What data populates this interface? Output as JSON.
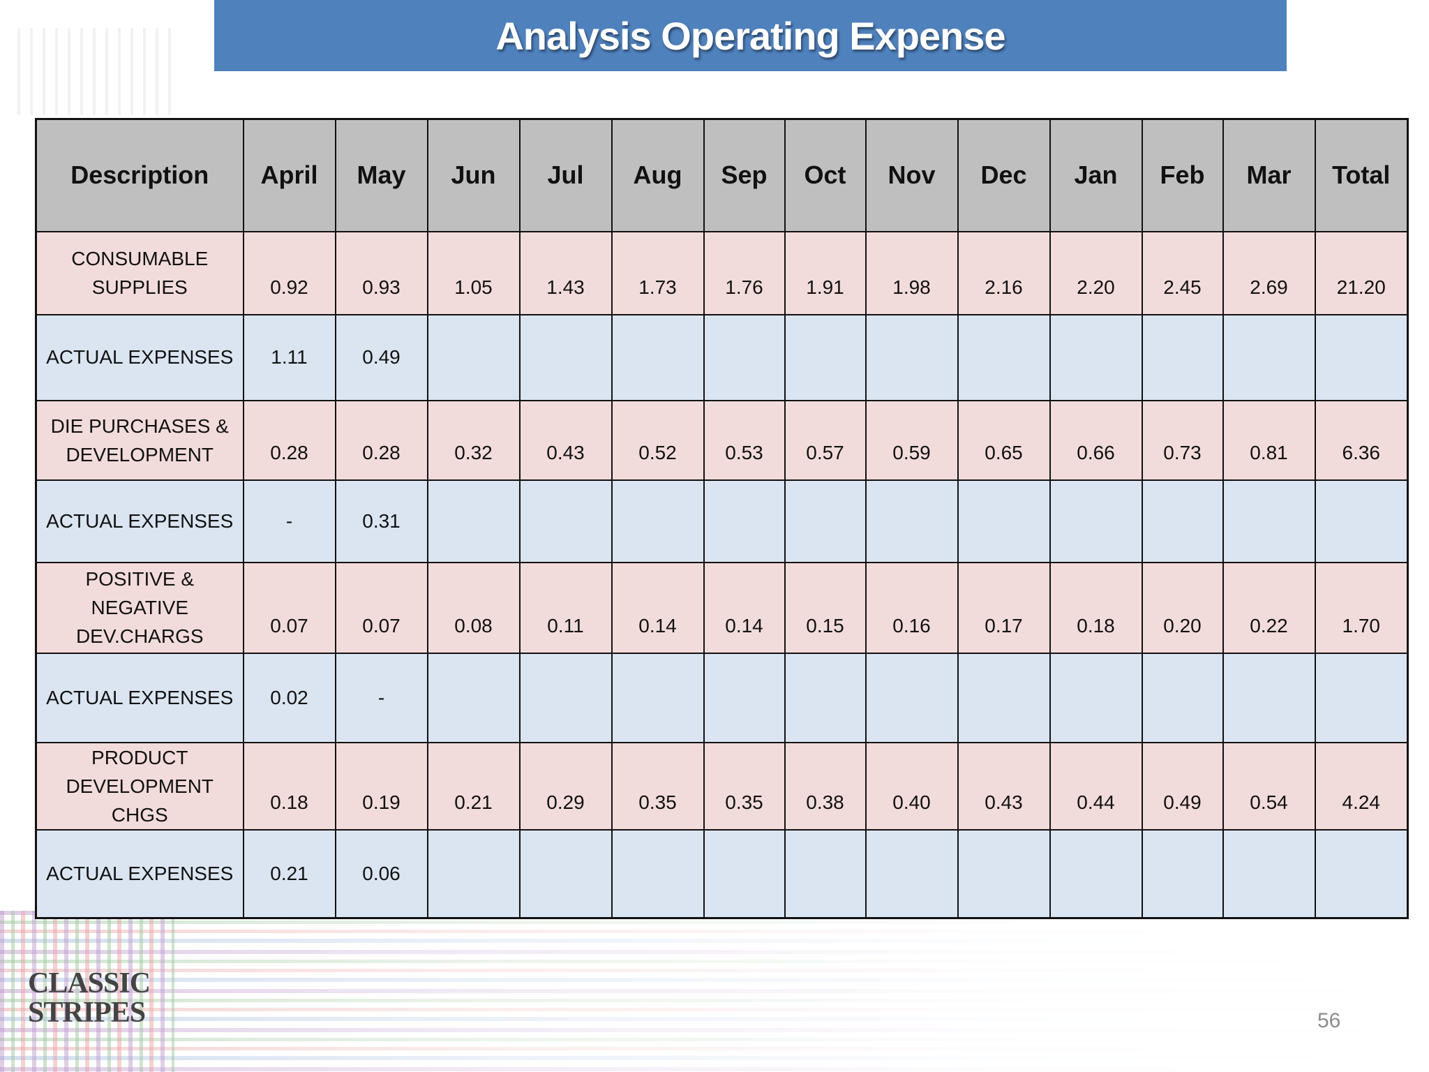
{
  "title": "Analysis Operating Expense",
  "header": [
    "Description",
    "April",
    "May",
    "Jun",
    "Jul",
    "Aug",
    "Sep",
    "Oct",
    "Nov",
    "Dec",
    "Jan",
    "Feb",
    "Mar",
    "Total"
  ],
  "rows": [
    {
      "type": "plan",
      "cells": [
        "CONSUMABLE\nSUPPLIES",
        "0.92",
        "0.93",
        "1.05",
        "1.43",
        "1.73",
        "1.76",
        "1.91",
        "1.98",
        "2.16",
        "2.20",
        "2.45",
        "2.69",
        "21.20"
      ]
    },
    {
      "type": "actual",
      "cells": [
        "ACTUAL EXPENSES",
        "1.11",
        "0.49",
        "",
        "",
        "",
        "",
        "",
        "",
        "",
        "",
        "",
        "",
        ""
      ]
    },
    {
      "type": "plan",
      "cells": [
        "DIE PURCHASES &\nDEVELOPMENT",
        "0.28",
        "0.28",
        "0.32",
        "0.43",
        "0.52",
        "0.53",
        "0.57",
        "0.59",
        "0.65",
        "0.66",
        "0.73",
        "0.81",
        "6.36"
      ]
    },
    {
      "type": "actual",
      "cells": [
        "ACTUAL EXPENSES",
        "-",
        "0.31",
        "",
        "",
        "",
        "",
        "",
        "",
        "",
        "",
        "",
        "",
        ""
      ]
    },
    {
      "type": "plan",
      "cells": [
        "POSITIVE &\nNEGATIVE\nDEV.CHARGS",
        "0.07",
        "0.07",
        "0.08",
        "0.11",
        "0.14",
        "0.14",
        "0.15",
        "0.16",
        "0.17",
        "0.18",
        "0.20",
        "0.22",
        "1.70"
      ]
    },
    {
      "type": "actual",
      "cells": [
        "ACTUAL EXPENSES",
        "0.02",
        "-",
        "",
        "",
        "",
        "",
        "",
        "",
        "",
        "",
        "",
        "",
        ""
      ]
    },
    {
      "type": "plan",
      "cells": [
        "PRODUCT\nDEVELOPMENT\nCHGS",
        "0.18",
        "0.19",
        "0.21",
        "0.29",
        "0.35",
        "0.35",
        "0.38",
        "0.40",
        "0.43",
        "0.44",
        "0.49",
        "0.54",
        "4.24"
      ]
    },
    {
      "type": "actual",
      "cells": [
        "ACTUAL EXPENSES",
        "0.21",
        "0.06",
        "",
        "",
        "",
        "",
        "",
        "",
        "",
        "",
        "",
        "",
        ""
      ]
    }
  ],
  "logo_text": "CLASSIC\nSTRIPES",
  "page_number": "56",
  "colors": {
    "title_bar": "#4f81bd",
    "header_bg": "#bfbfbf",
    "plan_row_bg": "#f2dcdb",
    "actual_row_bg": "#dbe5f1"
  }
}
